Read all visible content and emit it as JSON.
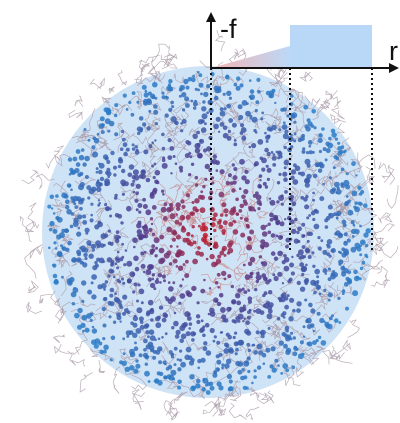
{
  "labels": {
    "y_axis": "-f",
    "x_axis": "r"
  }
}
